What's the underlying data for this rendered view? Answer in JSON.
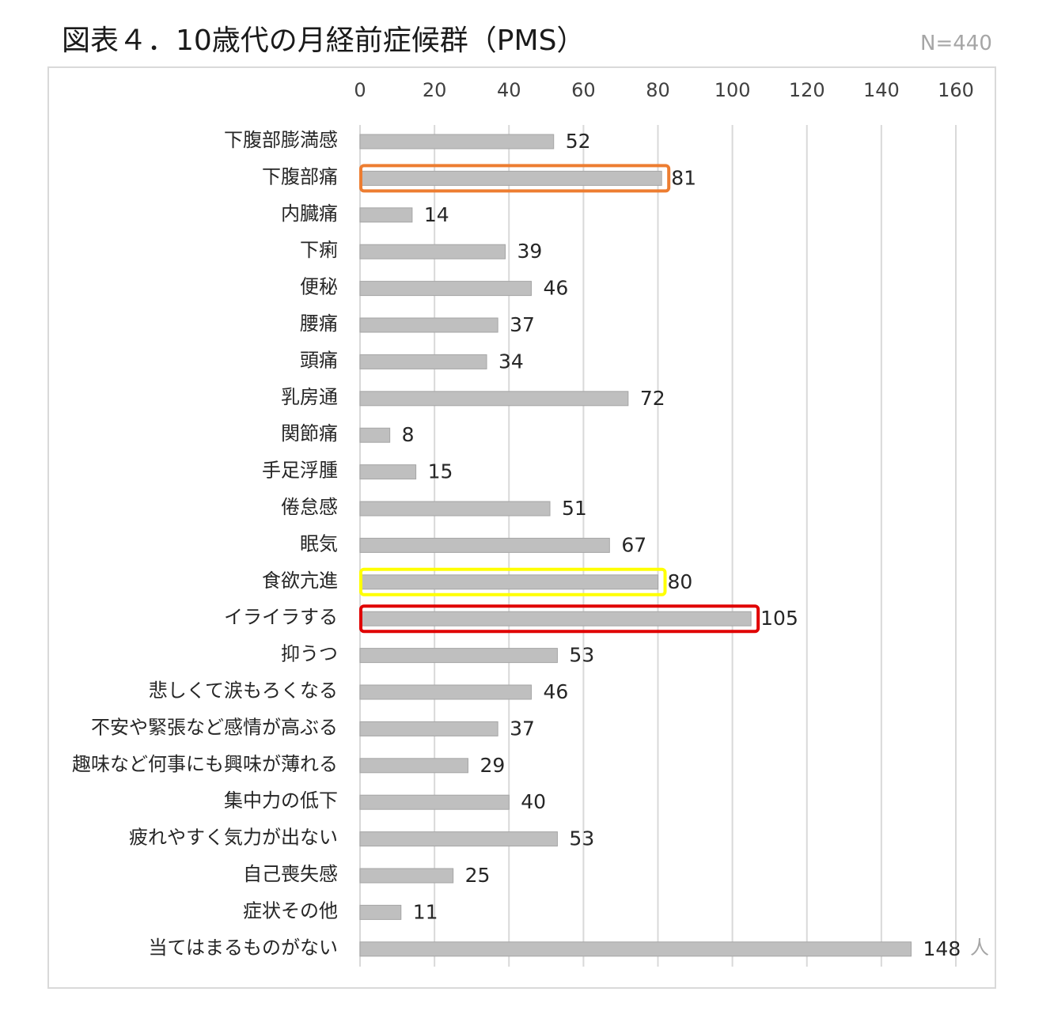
{
  "header": {
    "title": "図表４．10歳代の月経前症候群（PMS）",
    "sample": "N=440"
  },
  "chart_data": {
    "type": "bar",
    "orientation": "horizontal",
    "title": "図表４．10歳代の月経前症候群（PMS）",
    "xlim": [
      0,
      160
    ],
    "x_ticks": [
      0,
      20,
      40,
      60,
      80,
      100,
      120,
      140,
      160
    ],
    "grid": true,
    "unit": "人",
    "bar_color": "#bfbfbf",
    "categories": [
      "下腹部膨満感",
      "下腹部痛",
      "内臓痛",
      "下痢",
      "便秘",
      "腰痛",
      "頭痛",
      "乳房通",
      "関節痛",
      "手足浮腫",
      "倦怠感",
      "眠気",
      "食欲亢進",
      "イライラする",
      "抑うつ",
      "悲しくて涙もろくなる",
      "不安や緊張など感情が高ぶる",
      "趣味など何事にも興味が薄れる",
      "集中力の低下",
      "疲れやすく気力が出ない",
      "自己喪失感",
      "症状その他",
      "当てはまるものがない"
    ],
    "values": [
      52,
      81,
      14,
      39,
      46,
      37,
      34,
      72,
      8,
      15,
      51,
      67,
      80,
      105,
      53,
      46,
      37,
      29,
      40,
      53,
      25,
      11,
      148
    ],
    "highlights": [
      {
        "category": "下腹部痛",
        "color": "#ed7d31"
      },
      {
        "category": "食欲亢進",
        "color": "#ffff00"
      },
      {
        "category": "イライラする",
        "color": "#e00000"
      }
    ]
  }
}
